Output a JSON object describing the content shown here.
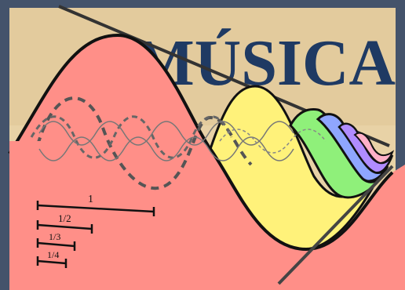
{
  "poster": {
    "title": "MÚSICA",
    "fractions": [
      "1",
      "1/2",
      "1/3",
      "1/4"
    ],
    "colors": {
      "frame": "#44536b",
      "parchment": "#e8d2a6",
      "title": "#1f3a63",
      "salmon": "#ff8f88",
      "yellow": "#fff27a",
      "green": "#8ff07a",
      "blue": "#8fa6ff",
      "violet": "#b08cff",
      "ink": "#111111"
    }
  }
}
